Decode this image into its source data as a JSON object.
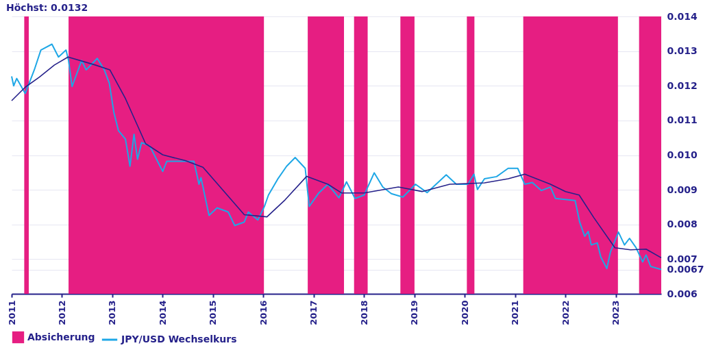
{
  "chart_data": {
    "type": "line",
    "annotations": [
      "Höchst: 0.0132"
    ],
    "xlim": [
      2011,
      2023.9
    ],
    "xticks": [
      2011,
      2012,
      2013,
      2014,
      2015,
      2016,
      2017,
      2018,
      2019,
      2020,
      2021,
      2022,
      2023
    ],
    "ylim": [
      0.006,
      0.014
    ],
    "yticks": [
      0.006,
      0.0067,
      0.007,
      0.008,
      0.009,
      {
        "value": 0.01,
        "label": "0.010"
      },
      0.011,
      0.012,
      0.013,
      0.014
    ],
    "grid": "y",
    "legend": "bottom",
    "line_style": "solid",
    "bands": [
      {
        "axis": "x",
        "from": 2011.25,
        "to": 2011.34,
        "label": "Absicherung",
        "color": "#e61e82"
      },
      {
        "axis": "x",
        "from": 2012.13,
        "to": 2016.01,
        "color": "#e61e82"
      },
      {
        "axis": "x",
        "from": 2016.88,
        "to": 2017.6,
        "color": "#e61e82"
      },
      {
        "axis": "x",
        "from": 2017.8,
        "to": 2018.07,
        "color": "#e61e82"
      },
      {
        "axis": "x",
        "from": 2018.72,
        "to": 2019.0,
        "color": "#e61e82"
      },
      {
        "axis": "x",
        "from": 2020.04,
        "to": 2020.19,
        "color": "#e61e82"
      },
      {
        "axis": "x",
        "from": 2021.16,
        "to": 2023.04,
        "color": "#e61e82"
      },
      {
        "axis": "x",
        "from": 2023.46,
        "to": 2023.9,
        "color": "#e61e82"
      }
    ],
    "series": [
      {
        "name": "JPY/USD Wechselkurs",
        "color": "#1ea7e6",
        "x": [
          2011.0,
          2011.04,
          2011.1,
          2011.27,
          2011.45,
          2011.58,
          2011.8,
          2011.93,
          2012.08,
          2012.13,
          2012.2,
          2012.39,
          2012.48,
          2012.7,
          2012.84,
          2012.94,
          2013.03,
          2013.12,
          2013.26,
          2013.35,
          2013.43,
          2013.5,
          2013.58,
          2013.74,
          2014.0,
          2014.08,
          2014.41,
          2014.62,
          2014.72,
          2014.76,
          2014.92,
          2015.08,
          2015.3,
          2015.43,
          2015.62,
          2015.7,
          2015.89,
          2016.02,
          2016.1,
          2016.28,
          2016.46,
          2016.63,
          2016.83,
          2016.91,
          2017.1,
          2017.28,
          2017.5,
          2017.65,
          2017.82,
          2018.0,
          2018.2,
          2018.37,
          2018.54,
          2018.77,
          2019.02,
          2019.25,
          2019.63,
          2019.83,
          2020.06,
          2020.18,
          2020.25,
          2020.39,
          2020.63,
          2020.86,
          2021.05,
          2021.19,
          2021.34,
          2021.52,
          2021.7,
          2021.8,
          2022.19,
          2022.28,
          2022.38,
          2022.45,
          2022.51,
          2022.63,
          2022.7,
          2022.82,
          2022.89,
          2023.05,
          2023.17,
          2023.27,
          2023.4,
          2023.53,
          2023.6,
          2023.69,
          2023.9
        ],
        "values": [
          0.01227,
          0.012,
          0.01221,
          0.01178,
          0.01246,
          0.01303,
          0.0132,
          0.01283,
          0.01303,
          0.01273,
          0.01198,
          0.01273,
          0.01246,
          0.01279,
          0.01246,
          0.01207,
          0.01123,
          0.01071,
          0.01046,
          0.00968,
          0.0106,
          0.00988,
          0.01036,
          0.01027,
          0.00953,
          0.00982,
          0.00982,
          0.00982,
          0.00916,
          0.00935,
          0.00826,
          0.00848,
          0.00836,
          0.00797,
          0.00807,
          0.00836,
          0.00813,
          0.00852,
          0.00885,
          0.0093,
          0.00968,
          0.00993,
          0.00962,
          0.00852,
          0.00891,
          0.00916,
          0.00877,
          0.00923,
          0.00875,
          0.00885,
          0.00949,
          0.00908,
          0.00889,
          0.00879,
          0.00916,
          0.00892,
          0.00943,
          0.00916,
          0.00916,
          0.00945,
          0.00901,
          0.00932,
          0.00938,
          0.00962,
          0.00962,
          0.00916,
          0.00921,
          0.00898,
          0.00908,
          0.00875,
          0.00869,
          0.00807,
          0.00766,
          0.0078,
          0.00741,
          0.00747,
          0.00706,
          0.00673,
          0.0072,
          0.00778,
          0.00741,
          0.0076,
          0.00733,
          0.00692,
          0.00712,
          0.00679,
          0.0067
        ]
      },
      {
        "color": "#25218a",
        "x": [
          2011.0,
          2011.27,
          2011.55,
          2011.85,
          2012.12,
          2012.66,
          2012.95,
          2013.26,
          2013.66,
          2014.0,
          2014.45,
          2014.8,
          2015.28,
          2015.62,
          2016.07,
          2016.43,
          2016.86,
          2017.28,
          2017.55,
          2018.0,
          2018.68,
          2019.15,
          2019.7,
          2020.39,
          2020.86,
          2021.19,
          2021.7,
          2022.0,
          2022.27,
          2022.56,
          2022.98,
          2023.29,
          2023.6,
          2023.9
        ],
        "values": [
          0.01157,
          0.01196,
          0.01225,
          0.0126,
          0.01283,
          0.0126,
          0.01246,
          0.01163,
          0.01033,
          0.01001,
          0.00984,
          0.00965,
          0.00885,
          0.00828,
          0.00822,
          0.00871,
          0.00939,
          0.00916,
          0.00891,
          0.00891,
          0.00908,
          0.00895,
          0.00916,
          0.0092,
          0.00932,
          0.00945,
          0.00916,
          0.00895,
          0.00885,
          0.0082,
          0.00733,
          0.00727,
          0.00729,
          0.00704
        ]
      }
    ]
  }
}
